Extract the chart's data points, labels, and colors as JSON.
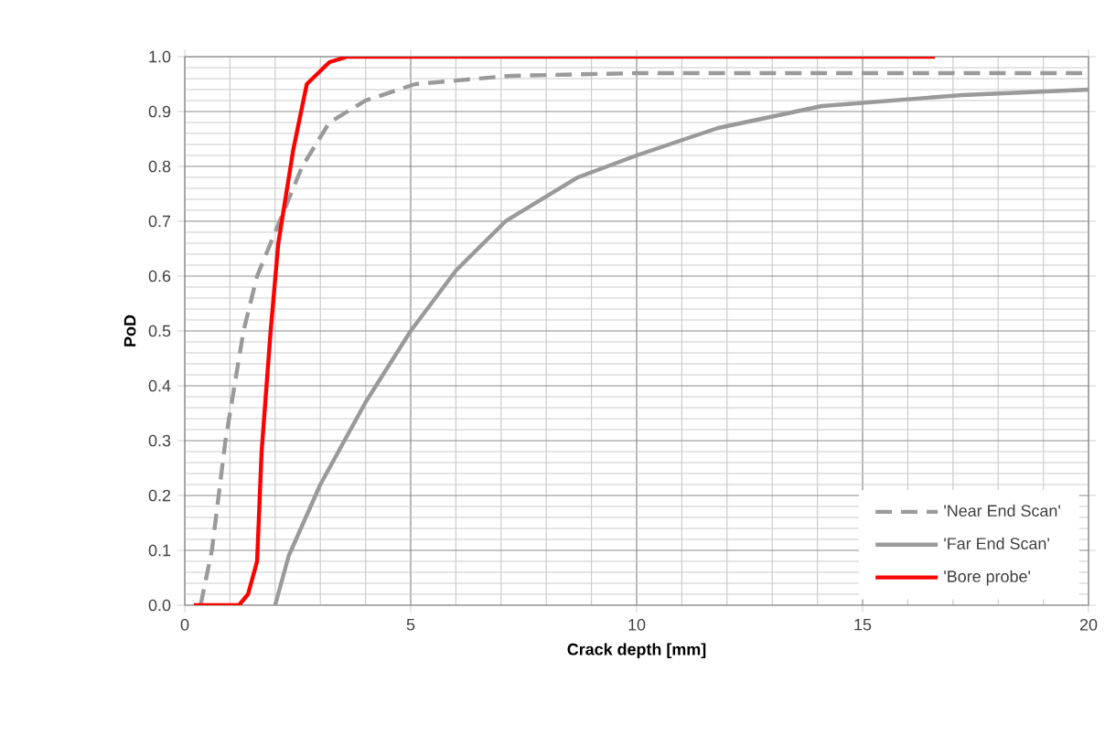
{
  "chart_data": {
    "type": "line",
    "xlabel": "Crack depth [mm]",
    "ylabel": "PoD",
    "xlim": [
      0,
      20
    ],
    "ylim": [
      0,
      1
    ],
    "xticks": [
      0,
      5,
      10,
      15,
      20
    ],
    "yticks": [
      {
        "value": 0,
        "label": "0.0"
      },
      {
        "value": 0.1,
        "label": "0.1"
      },
      {
        "value": 0.2,
        "label": "0.2"
      },
      {
        "value": 0.3,
        "label": "0.3"
      },
      {
        "value": 0.4,
        "label": "0.4"
      },
      {
        "value": 0.5,
        "label": "0.5"
      },
      {
        "value": 0.6,
        "label": "0.6"
      },
      {
        "value": 0.7,
        "label": "0.7"
      },
      {
        "value": 0.8,
        "label": "0.8"
      },
      {
        "value": 0.9,
        "label": "0.9"
      },
      {
        "value": 1,
        "label": "1.0"
      }
    ],
    "grid": true,
    "legend": "bottom right",
    "marker": "none",
    "series": [
      {
        "name": "'Near End Scan'",
        "color": "#9a9a9a",
        "line_style": "dashed",
        "x": [
          0.35,
          0.6,
          0.9,
          1.1,
          1.3,
          1.6,
          2.0,
          2.6,
          3.2,
          4.0,
          5.1,
          7.2,
          10,
          15,
          20
        ],
        "values": [
          0,
          0.1,
          0.3,
          0.4,
          0.5,
          0.6,
          0.68,
          0.8,
          0.88,
          0.92,
          0.95,
          0.965,
          0.97,
          0.97,
          0.97
        ]
      },
      {
        "name": "'Far End Scan'",
        "color": "#9a9a9a",
        "line_style": "solid",
        "x": [
          2.0,
          2.3,
          3.0,
          4.0,
          5.0,
          6.0,
          7.1,
          8.7,
          10.0,
          11.8,
          14.1,
          17.2,
          20
        ],
        "values": [
          0,
          0.09,
          0.22,
          0.37,
          0.5,
          0.61,
          0.7,
          0.78,
          0.82,
          0.87,
          0.91,
          0.93,
          0.94
        ]
      },
      {
        "name": "'Bore probe'",
        "color": "#ff0000",
        "line_style": "solid",
        "x": [
          0.2,
          1.2,
          1.4,
          1.6,
          1.7,
          1.9,
          2.07,
          2.4,
          2.7,
          3.2,
          3.6,
          16.6
        ],
        "values": [
          0,
          0,
          0.02,
          0.08,
          0.28,
          0.5,
          0.66,
          0.83,
          0.95,
          0.99,
          1,
          1
        ]
      }
    ]
  }
}
